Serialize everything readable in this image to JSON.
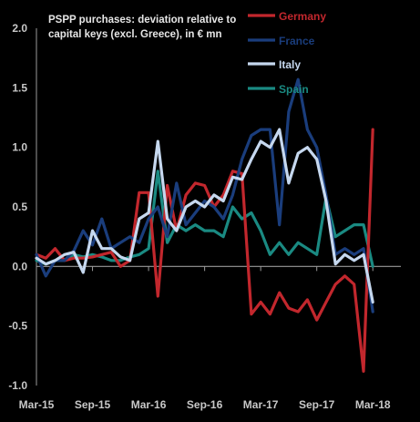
{
  "chart_data": {
    "type": "line",
    "title_lines": [
      "PSPP purchases: deviation relative to",
      "capital keys (excl. Greece), in € mn"
    ],
    "xlabel": "",
    "ylabel": "",
    "ylim": [
      -1.0,
      2.0
    ],
    "yticks": [
      2.0,
      1.5,
      1.0,
      0.5,
      0.0,
      -0.5,
      -1.0
    ],
    "ytick_labels": [
      "2.0",
      "1.5",
      "1.0",
      "0.5",
      "0.0",
      "-0.5",
      "-1.0"
    ],
    "xticks": [
      "Mar-15",
      "Sep-15",
      "Mar-16",
      "Sep-16",
      "Mar-17",
      "Sep-17",
      "Mar-18"
    ],
    "xtick_index": [
      0,
      6,
      12,
      18,
      24,
      30,
      36
    ],
    "n_points": 40,
    "grid": false,
    "legend_position": "top-right",
    "series": [
      {
        "name": "Germany",
        "color": "#c2272d",
        "values": [
          0.1,
          0.07,
          0.15,
          0.05,
          0.07,
          0.07,
          0.08,
          0.1,
          0.12,
          0.0,
          0.05,
          0.62,
          0.62,
          -0.25,
          0.68,
          0.3,
          0.6,
          0.7,
          0.68,
          0.5,
          0.6,
          0.8,
          0.78,
          -0.4,
          -0.3,
          -0.4,
          -0.22,
          -0.35,
          -0.38,
          -0.28,
          -0.45,
          -0.3,
          -0.15,
          -0.08,
          -0.15,
          -0.88,
          1.15,
          null,
          null,
          null
        ]
      },
      {
        "name": "France",
        "color": "#1a3d7c",
        "values": [
          0.1,
          -0.08,
          0.05,
          0.05,
          0.13,
          0.3,
          0.18,
          0.4,
          0.15,
          0.2,
          0.25,
          0.2,
          0.4,
          0.5,
          0.25,
          0.7,
          0.35,
          0.45,
          0.55,
          0.5,
          0.4,
          0.6,
          0.9,
          1.1,
          1.15,
          1.15,
          0.35,
          1.3,
          1.57,
          1.15,
          1.0,
          0.6,
          0.1,
          0.15,
          0.1,
          0.15,
          -0.38,
          null,
          null,
          null
        ]
      },
      {
        "name": "Italy",
        "color": "#c6d8ef",
        "values": [
          0.07,
          0.02,
          0.05,
          0.1,
          0.12,
          -0.05,
          0.3,
          0.15,
          0.15,
          0.08,
          0.05,
          0.4,
          0.45,
          1.05,
          0.4,
          0.3,
          0.5,
          0.55,
          0.5,
          0.6,
          0.55,
          0.75,
          0.73,
          0.9,
          1.05,
          1.0,
          1.15,
          0.7,
          0.95,
          1.0,
          0.9,
          0.55,
          0.02,
          0.1,
          0.05,
          0.1,
          -0.3,
          null,
          null,
          null
        ]
      },
      {
        "name": "Spain",
        "color": "#1a8a82",
        "values": [
          0.05,
          0.02,
          0.05,
          0.05,
          0.1,
          0.08,
          0.1,
          0.08,
          0.05,
          0.05,
          0.08,
          0.1,
          0.15,
          0.8,
          0.2,
          0.35,
          0.3,
          0.35,
          0.3,
          0.3,
          0.25,
          0.5,
          0.4,
          0.45,
          0.3,
          0.1,
          0.2,
          0.1,
          0.2,
          0.15,
          0.1,
          0.58,
          0.25,
          0.3,
          0.35,
          0.35,
          0.0,
          null,
          null,
          null
        ]
      }
    ]
  }
}
